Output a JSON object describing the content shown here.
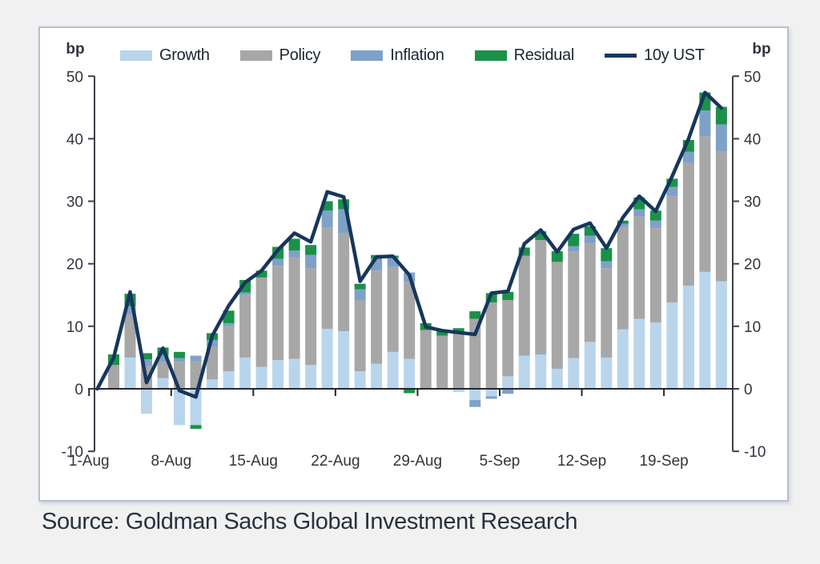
{
  "page": {
    "source_text": "Source: Goldman Sachs Global Investment Research"
  },
  "panel": {
    "unit_left": "bp",
    "unit_right": "bp"
  },
  "legend": [
    {
      "label": "Growth",
      "color": "#b9d5ec",
      "type": "swatch"
    },
    {
      "label": "Policy",
      "color": "#a7a7a7",
      "type": "swatch"
    },
    {
      "label": "Inflation",
      "color": "#7ea1c8",
      "type": "swatch"
    },
    {
      "label": "Residual",
      "color": "#1a9148",
      "type": "swatch"
    },
    {
      "label": "10y UST",
      "color": "#17365d",
      "type": "line"
    }
  ],
  "colors": {
    "axis": "#3f3f49",
    "zero_line": "#26262e",
    "tick_text": "#33333e",
    "panel_border": "#b3c0d4",
    "page_background": "#f1f1f2",
    "line": "#17365d"
  },
  "chart_data": {
    "type": "stacked-bar-with-line",
    "title": "",
    "xlabel": "",
    "ylabel": "bp",
    "unit": "bp",
    "ylim": [
      -10,
      50
    ],
    "yticks": [
      50,
      40,
      30,
      20,
      10,
      0,
      -10
    ],
    "grid": false,
    "legend_position": "top",
    "xtick_labels": [
      "1-Aug",
      "8-Aug",
      "15-Aug",
      "22-Aug",
      "29-Aug",
      "5-Sep",
      "12-Sep",
      "19-Sep"
    ],
    "categories": [
      "1-Aug",
      "2-Aug",
      "3-Aug",
      "4-Aug",
      "5-Aug",
      "8-Aug",
      "9-Aug",
      "10-Aug",
      "11-Aug",
      "12-Aug",
      "15-Aug",
      "16-Aug",
      "17-Aug",
      "18-Aug",
      "19-Aug",
      "22-Aug",
      "23-Aug",
      "24-Aug",
      "25-Aug",
      "26-Aug",
      "29-Aug",
      "30-Aug",
      "31-Aug",
      "1-Sep",
      "2-Sep",
      "5-Sep",
      "6-Sep",
      "7-Sep",
      "8-Sep",
      "9-Sep",
      "12-Sep",
      "13-Sep",
      "14-Sep",
      "15-Sep",
      "16-Sep",
      "19-Sep",
      "20-Sep",
      "21-Sep",
      "22-Sep"
    ],
    "series": [
      {
        "name": "Growth",
        "color": "#b9d5ec",
        "values": [
          0,
          0,
          5.0,
          -4.0,
          1.7,
          -5.8,
          -5.8,
          1.5,
          2.8,
          5.0,
          3.5,
          4.6,
          4.8,
          3.8,
          9.6,
          9.2,
          2.8,
          4.0,
          5.9,
          4.8,
          0,
          0,
          -0.5,
          -1.8,
          -1.2,
          2.0,
          5.3,
          5.5,
          3.2,
          4.9,
          7.5,
          5.0,
          9.5,
          11.2,
          10.6,
          13.8,
          16.5,
          18.7,
          17.2
        ]
      },
      {
        "name": "Policy",
        "color": "#a7a7a7",
        "values": [
          0,
          3.8,
          6.8,
          3.6,
          2.6,
          4.3,
          4.4,
          5.2,
          7.2,
          10.0,
          14.3,
          15.1,
          16.2,
          15.5,
          16.2,
          15.7,
          11.4,
          14.9,
          13.6,
          12.3,
          9.4,
          8.5,
          8.8,
          11.2,
          13.8,
          12.2,
          16.0,
          18.3,
          17.1,
          17.1,
          15.8,
          14.3,
          16.4,
          16.4,
          15.1,
          17.0,
          19.6,
          21.7,
          20.7
        ]
      },
      {
        "name": "Inflation",
        "color": "#7ea1c8",
        "values": [
          0,
          0,
          1.4,
          1.1,
          1.1,
          0.6,
          0.9,
          1.1,
          0.5,
          0.4,
          0,
          1.1,
          1.1,
          2.1,
          2.7,
          3.8,
          1.7,
          1.9,
          1.5,
          1.5,
          0,
          0,
          0,
          -1.1,
          -0.4,
          -0.8,
          0,
          0,
          0,
          0.8,
          1.2,
          1.1,
          0.5,
          1.1,
          1.2,
          1.5,
          1.8,
          4.1,
          4.4
        ]
      },
      {
        "name": "Residual",
        "color": "#1a9148",
        "values": [
          0,
          1.7,
          2.0,
          1.0,
          1.2,
          1.0,
          -0.6,
          1.1,
          2.0,
          2.0,
          1.1,
          1.9,
          1.9,
          1.6,
          1.5,
          1.6,
          0.9,
          0.6,
          0.3,
          -0.7,
          1.1,
          0.9,
          0.9,
          1.2,
          1.5,
          1.3,
          1.3,
          1.4,
          1.7,
          2.0,
          1.5,
          2.1,
          0.5,
          1.9,
          1.6,
          1.3,
          1.9,
          2.9,
          2.8
        ]
      }
    ],
    "line": {
      "name": "10y UST",
      "color": "#17365d",
      "values": [
        0,
        5.0,
        15.5,
        1.0,
        6.5,
        -0.3,
        -1.3,
        8.5,
        13.3,
        17.0,
        18.9,
        22.2,
        24.9,
        23.5,
        31.5,
        30.7,
        17.2,
        21.1,
        21.2,
        18.2,
        9.9,
        9.3,
        9.0,
        8.7,
        15.3,
        15.6,
        23.2,
        25.4,
        21.9,
        25.5,
        26.5,
        22.5,
        27.4,
        30.8,
        28.4,
        34.0,
        40.0,
        47.4,
        44.9
      ]
    }
  }
}
